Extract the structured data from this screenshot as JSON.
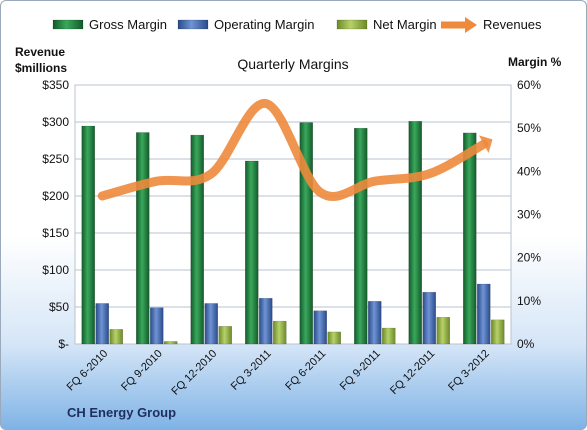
{
  "chart_data": {
    "type": "bar",
    "title": "Quarterly Margins",
    "categories": [
      "FQ 6-2010",
      "FQ 9-2010",
      "FQ 12-2010",
      "FQ 3-2011",
      "FQ 6-2011",
      "FQ 9-2011",
      "FQ 12-2011",
      "FQ 3-2012"
    ],
    "series": [
      {
        "name": "Gross Margin",
        "axis": "right",
        "kind": "bar",
        "color": "#1e7a3c",
        "values": [
          50.5,
          49.0,
          48.4,
          42.4,
          51.3,
          50.0,
          51.6,
          48.9
        ]
      },
      {
        "name": "Operating Margin",
        "axis": "right",
        "kind": "bar",
        "color": "#3f66ad",
        "values": [
          9.4,
          8.4,
          9.4,
          10.6,
          7.7,
          9.9,
          12.0,
          13.9
        ]
      },
      {
        "name": "Net Margin",
        "axis": "right",
        "kind": "bar",
        "color": "#8fae3f",
        "values": [
          3.4,
          0.6,
          4.1,
          5.3,
          2.8,
          3.7,
          6.2,
          5.6
        ]
      },
      {
        "name": "Revenues",
        "axis": "left",
        "kind": "line",
        "color": "#ee8a3c",
        "values": [
          200,
          220,
          230,
          325,
          205,
          220,
          230,
          270
        ]
      }
    ],
    "y_left": {
      "label_line1": "Revenue",
      "label_line2": "$millions",
      "ylim": [
        0,
        350
      ],
      "ticks": [
        "$-",
        "$50",
        "$100",
        "$150",
        "$200",
        "$250",
        "$300",
        "$350"
      ]
    },
    "y_right": {
      "label": "Margin %",
      "ylim": [
        0,
        60
      ],
      "ticks": [
        "0%",
        "10%",
        "20%",
        "30%",
        "40%",
        "50%",
        "60%"
      ]
    },
    "grid": true,
    "legend": "top"
  },
  "footer": {
    "company": "CH Energy Group"
  }
}
